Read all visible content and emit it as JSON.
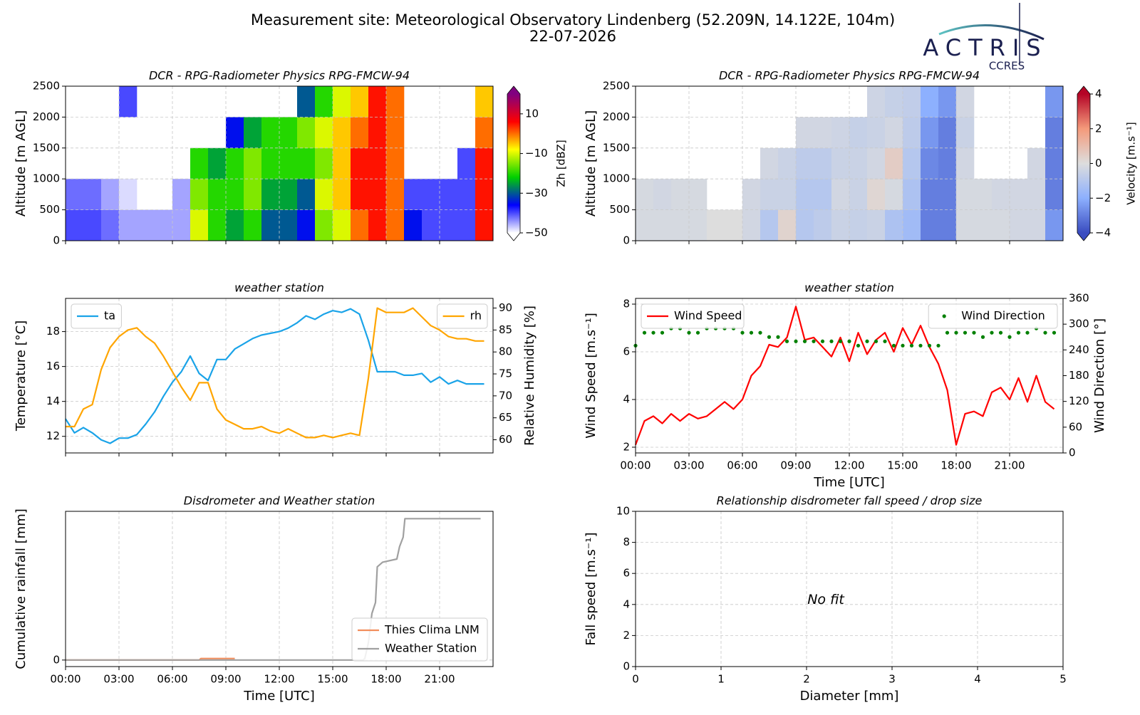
{
  "title": "Measurement site: Meteorological Observatory Lindenberg (52.209N, 14.122E, 104m)",
  "date": "22-07-2026",
  "logo": {
    "name": "ACTRIS",
    "group": "CCRES"
  },
  "chart_data": [
    {
      "type": "heatmap",
      "title": "DCR - RPG-Radiometer Physics RPG-FMCW-94",
      "ylabel": "Altitude [m AGL]",
      "xlim": [
        0,
        24
      ],
      "xticks": [
        0,
        3,
        6,
        9,
        12,
        15,
        18,
        21
      ],
      "show_xticklabels": false,
      "ylim": [
        0,
        2500
      ],
      "yticks": [
        0,
        500,
        1000,
        1500,
        2000,
        2500
      ],
      "grid": true,
      "x_edges": [
        0,
        1,
        2,
        3,
        4,
        5,
        6,
        7,
        8,
        9,
        10,
        11,
        12,
        13,
        14,
        15,
        16,
        17,
        18,
        19,
        20,
        21,
        22,
        23,
        24
      ],
      "y_edges": [
        0,
        500,
        1000,
        1500,
        2000,
        2500
      ],
      "values": [
        [
          -40,
          -42,
          null,
          null,
          null
        ],
        [
          -40,
          -42,
          null,
          null,
          null
        ],
        [
          -42,
          -45,
          null,
          null,
          null
        ],
        [
          -45,
          -48,
          null,
          null,
          -40
        ],
        [
          -45,
          null,
          null,
          null,
          null
        ],
        [
          -45,
          null,
          null,
          null,
          null
        ],
        [
          -45,
          -45,
          null,
          null,
          null
        ],
        [
          -10,
          -15,
          -20,
          null,
          null
        ],
        [
          -20,
          -20,
          -25,
          null,
          null
        ],
        [
          -25,
          -20,
          -20,
          -35,
          null
        ],
        [
          -20,
          -15,
          -15,
          -25,
          null
        ],
        [
          -30,
          -25,
          -20,
          -20,
          null
        ],
        [
          -30,
          -25,
          -20,
          -20,
          null
        ],
        [
          -35,
          -30,
          -20,
          -15,
          -30
        ],
        [
          -15,
          -10,
          -15,
          -10,
          -20
        ],
        [
          -10,
          -5,
          -5,
          -5,
          -10
        ],
        [
          0,
          5,
          5,
          0,
          -5
        ],
        [
          5,
          5,
          5,
          5,
          5
        ],
        [
          0,
          0,
          0,
          0,
          0
        ],
        [
          -35,
          -40,
          null,
          null,
          null
        ],
        [
          -40,
          -40,
          null,
          null,
          null
        ],
        [
          -40,
          -40,
          null,
          null,
          null
        ],
        [
          -40,
          -40,
          -40,
          null,
          null
        ],
        [
          5,
          5,
          5,
          0,
          -5
        ]
      ],
      "clabel": "Zh [dBZ]",
      "clim": [
        -50,
        20
      ],
      "cticks": [
        10,
        {
          "value": -10,
          "label": "−10"
        },
        {
          "value": -30,
          "label": "−30"
        },
        {
          "value": -50,
          "label": "−50"
        }
      ],
      "colors": [
        "#ffffff",
        "#0000ff",
        "#00d000",
        "#ffff00",
        "#ff0000",
        "#800080"
      ]
    },
    {
      "type": "heatmap",
      "title": "DCR - RPG-Radiometer Physics RPG-FMCW-94",
      "ylabel": "Altitude [m AGL]",
      "xlim": [
        0,
        24
      ],
      "xticks": [
        0,
        3,
        6,
        9,
        12,
        15,
        18,
        21
      ],
      "show_xticklabels": false,
      "ylim": [
        0,
        2500
      ],
      "yticks": [
        0,
        500,
        1000,
        1500,
        2000,
        2500
      ],
      "grid": true,
      "x_edges": [
        0,
        1,
        2,
        3,
        4,
        5,
        6,
        7,
        8,
        9,
        10,
        11,
        12,
        13,
        14,
        15,
        16,
        17,
        18,
        19,
        20,
        21,
        22,
        23,
        24
      ],
      "y_edges": [
        0,
        500,
        1000,
        1500,
        2000,
        2500
      ],
      "values": [
        [
          -0.2,
          -0.2,
          null,
          null,
          null
        ],
        [
          -0.2,
          -0.3,
          null,
          null,
          null
        ],
        [
          -0.2,
          -0.2,
          null,
          null,
          null
        ],
        [
          -0.2,
          -0.2,
          null,
          null,
          null
        ],
        [
          0,
          null,
          null,
          null,
          null
        ],
        [
          0,
          null,
          null,
          null,
          null
        ],
        [
          -0.3,
          -0.3,
          null,
          null,
          null
        ],
        [
          -1,
          -0.5,
          -0.3,
          null,
          null
        ],
        [
          0.3,
          -0.5,
          -0.5,
          null,
          null
        ],
        [
          -1,
          -1,
          -0.8,
          -0.3,
          null
        ],
        [
          -0.8,
          -1,
          -0.8,
          -0.3,
          null
        ],
        [
          -0.5,
          -0.3,
          -0.5,
          -0.4,
          null
        ],
        [
          -0.6,
          -0.5,
          -0.5,
          -0.6,
          null
        ],
        [
          -0.5,
          0.2,
          -0.3,
          -0.5,
          -0.4
        ],
        [
          -1.2,
          -0.2,
          0.5,
          -0.3,
          -0.6
        ],
        [
          -1.5,
          -1.2,
          -1,
          -0.8,
          -0.7
        ],
        [
          -3,
          -3,
          -2.8,
          -2.5,
          -2
        ],
        [
          -3,
          -3,
          -3,
          -3,
          -2.5
        ],
        [
          -0.2,
          -0.2,
          -0.3,
          -0.5,
          -0.3
        ],
        [
          -0.2,
          -0.2,
          null,
          null,
          null
        ],
        [
          -0.2,
          -0.3,
          null,
          null,
          null
        ],
        [
          -0.3,
          -0.3,
          null,
          null,
          null
        ],
        [
          -0.3,
          -0.3,
          -0.3,
          null,
          null
        ],
        [
          -2.5,
          -3,
          -3,
          -3,
          -2.5
        ]
      ],
      "clabel": "Velocity [m.s⁻¹]",
      "clim": [
        -4,
        4
      ],
      "cticks": [
        4,
        2,
        0,
        {
          "value": -2,
          "label": "−2"
        },
        {
          "value": -4,
          "label": "−4"
        }
      ],
      "colors": [
        "#3a4cc0",
        "#8db0fe",
        "#dddddd",
        "#f49a7b",
        "#b40426"
      ]
    },
    {
      "type": "line",
      "title": "weather station",
      "ylabel": "Temperature [°C]",
      "y2label": "Relative Humidity [%]",
      "xlim": [
        0,
        24
      ],
      "xticks": [
        0,
        3,
        6,
        9,
        12,
        15,
        18,
        21
      ],
      "show_xticklabels": false,
      "ylim": [
        11.05,
        19.9
      ],
      "yticks": [
        12,
        14,
        16,
        18
      ],
      "y2lim": [
        57,
        92.2
      ],
      "y2ticks": [
        60,
        65,
        70,
        75,
        80,
        85,
        90
      ],
      "grid": true,
      "x": [
        0,
        0.5,
        1,
        1.5,
        2,
        2.5,
        3,
        3.5,
        4,
        4.5,
        5,
        5.5,
        6,
        6.5,
        7,
        7.5,
        8,
        8.5,
        9,
        9.5,
        10,
        10.5,
        11,
        11.5,
        12,
        12.5,
        13,
        13.5,
        14,
        14.5,
        15,
        15.5,
        16,
        16.5,
        17,
        17.5,
        18,
        18.5,
        19,
        19.5,
        20,
        20.5,
        21,
        21.5,
        22,
        22.5,
        23,
        23.5
      ],
      "series": [
        {
          "name": "ta",
          "color": "#1aa3e8",
          "legend": "upper left",
          "values": [
            13.0,
            12.2,
            12.5,
            12.2,
            11.8,
            11.6,
            11.9,
            11.9,
            12.1,
            12.7,
            13.4,
            14.3,
            15.1,
            15.7,
            16.6,
            15.6,
            15.2,
            16.4,
            16.4,
            17.0,
            17.3,
            17.6,
            17.8,
            17.9,
            18.0,
            18.2,
            18.5,
            18.9,
            18.7,
            19.0,
            19.2,
            19.1,
            19.3,
            19.0,
            17.5,
            15.7,
            15.7,
            15.7,
            15.5,
            15.5,
            15.6,
            15.1,
            15.4,
            15.0,
            15.2,
            15.0,
            15.0,
            15.0
          ]
        },
        {
          "name": "rh",
          "color": "#ffa500",
          "axis": "y2",
          "legend": "upper right",
          "values": [
            63,
            63,
            67,
            68,
            76,
            81,
            83.5,
            85,
            85.5,
            83.5,
            82,
            79,
            75.5,
            72,
            69,
            73,
            73,
            67,
            64.5,
            63.5,
            62.5,
            62.5,
            63,
            62,
            61.5,
            62.5,
            61.5,
            60.5,
            60.5,
            61,
            60.5,
            61,
            61.5,
            61,
            74,
            90,
            89,
            89,
            89,
            90,
            88,
            86,
            85,
            83.5,
            83,
            83,
            82.5,
            82.5
          ]
        }
      ]
    },
    {
      "type": "line",
      "title": "weather station",
      "xlabel": "Time [UTC]",
      "ylabel": "Wind Speed [m.s⁻¹]",
      "y2label": "Wind Direction [°]",
      "xlim": [
        0,
        24
      ],
      "xticks": [
        {
          "value": 0,
          "label": "00:00"
        },
        {
          "value": 3,
          "label": "03:00"
        },
        {
          "value": 6,
          "label": "06:00"
        },
        {
          "value": 9,
          "label": "09:00"
        },
        {
          "value": 12,
          "label": "12:00"
        },
        {
          "value": 15,
          "label": "15:00"
        },
        {
          "value": 18,
          "label": "18:00"
        },
        {
          "value": 21,
          "label": "21:00"
        }
      ],
      "ylim": [
        1.76,
        8.24
      ],
      "yticks": [
        2,
        4,
        6,
        8
      ],
      "y2lim": [
        0,
        360
      ],
      "y2ticks": [
        0,
        60,
        120,
        180,
        240,
        300,
        360
      ],
      "grid": true,
      "x": [
        0,
        0.5,
        1,
        1.5,
        2,
        2.5,
        3,
        3.5,
        4,
        4.5,
        5,
        5.5,
        6,
        6.5,
        7,
        7.5,
        8,
        8.5,
        9,
        9.5,
        10,
        10.5,
        11,
        11.5,
        12,
        12.5,
        13,
        13.5,
        14,
        14.5,
        15,
        15.5,
        16,
        16.5,
        17,
        17.5,
        18,
        18.5,
        19,
        19.5,
        20,
        20.5,
        21,
        21.5,
        22,
        22.5,
        23,
        23.5
      ],
      "series": [
        {
          "name": "Wind Speed",
          "color": "#ff0000",
          "legend": "upper left",
          "values": [
            2.1,
            3.1,
            3.3,
            3.0,
            3.4,
            3.1,
            3.4,
            3.2,
            3.3,
            3.6,
            3.9,
            3.6,
            4.0,
            5.0,
            5.4,
            6.3,
            6.2,
            6.6,
            7.9,
            6.5,
            6.6,
            6.2,
            5.8,
            6.6,
            5.6,
            6.8,
            5.9,
            6.5,
            6.8,
            6.0,
            7.0,
            6.3,
            7.1,
            6.2,
            5.5,
            4.4,
            2.1,
            3.4,
            3.5,
            3.3,
            4.3,
            4.5,
            4.0,
            4.9,
            3.9,
            5.0,
            3.9,
            3.6
          ]
        },
        {
          "name": "Wind Direction",
          "color": "#008000",
          "axis": "y2",
          "mode": "markers",
          "legend": "upper right",
          "values": [
            250,
            280,
            280,
            280,
            290,
            290,
            280,
            280,
            290,
            290,
            290,
            290,
            280,
            280,
            280,
            270,
            270,
            260,
            260,
            260,
            260,
            260,
            260,
            260,
            260,
            250,
            260,
            260,
            260,
            250,
            250,
            250,
            250,
            250,
            250,
            280,
            280,
            280,
            280,
            270,
            280,
            280,
            270,
            280,
            280,
            290,
            280,
            280
          ]
        }
      ]
    },
    {
      "type": "line",
      "title": "Disdrometer and Weather station",
      "xlabel": "Time [UTC]",
      "ylabel": "Cumulative rainfall [mm]",
      "xlim": [
        0,
        24
      ],
      "xticks": [
        {
          "value": 0,
          "label": "00:00"
        },
        {
          "value": 3,
          "label": "03:00"
        },
        {
          "value": 6,
          "label": "06:00"
        },
        {
          "value": 9,
          "label": "09:00"
        },
        {
          "value": 12,
          "label": "12:00"
        },
        {
          "value": 15,
          "label": "15:00"
        },
        {
          "value": 18,
          "label": "18:00"
        },
        {
          "value": 21,
          "label": "21:00"
        }
      ],
      "ylim": [
        -0.42,
        9.57
      ],
      "yticks": [
        0
      ],
      "grid": true,
      "legend": "lower right",
      "series": [
        {
          "name": "Thies Clima LNM",
          "color": "#f28e5c",
          "x": [
            0,
            7.5,
            7.6,
            9.5
          ],
          "values": [
            0,
            0,
            0.1,
            0.1
          ]
        },
        {
          "name": "Weather Station",
          "color": "#a0a0a0",
          "x": [
            0,
            16.7,
            16.8,
            17.0,
            17.2,
            17.4,
            17.5,
            17.8,
            18.6,
            18.75,
            18.95,
            19.05,
            23.3
          ],
          "values": [
            0,
            0,
            0.1,
            1.1,
            3.0,
            3.7,
            6.0,
            6.3,
            6.5,
            7.3,
            7.9,
            9.1,
            9.1
          ]
        }
      ]
    },
    {
      "type": "scatter",
      "title": "Relationship disdrometer fall speed / drop size",
      "xlabel": "Diameter [mm]",
      "ylabel": "Fall speed [m.s⁻¹]",
      "xlim": [
        0,
        5
      ],
      "xticks": [
        0,
        1,
        2,
        3,
        4,
        5
      ],
      "ylim": [
        0,
        10
      ],
      "yticks": [
        0,
        2,
        4,
        6,
        8,
        10
      ],
      "grid": true,
      "annotation": "No fit"
    }
  ]
}
